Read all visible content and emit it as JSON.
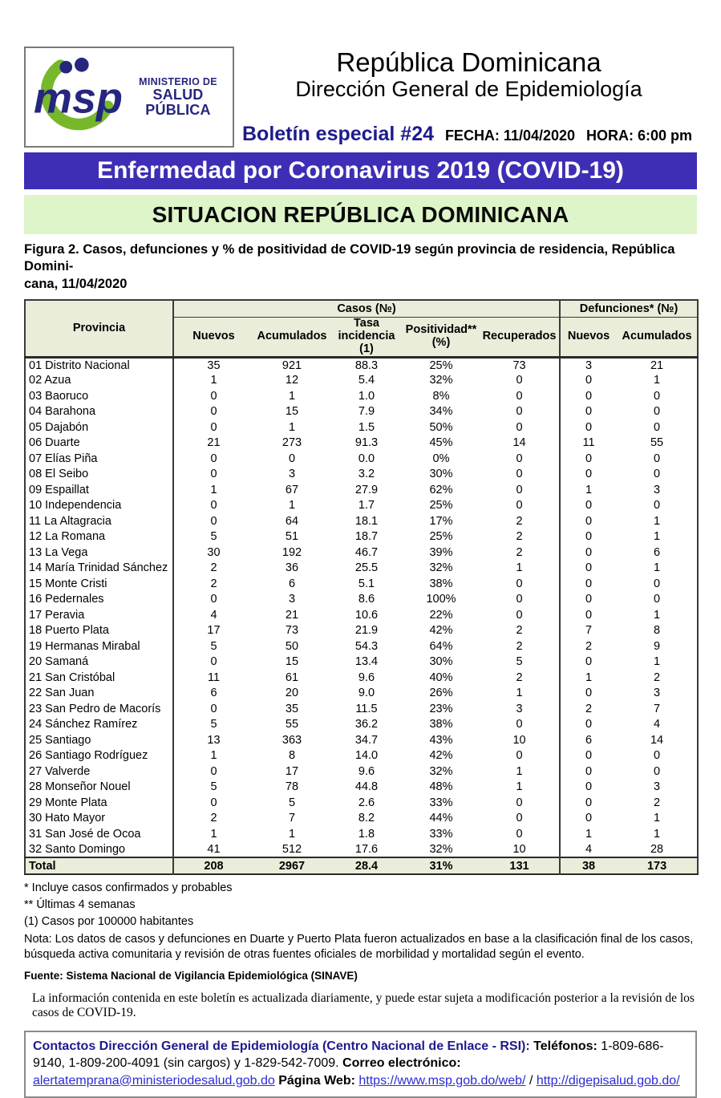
{
  "header": {
    "logo": {
      "acronym": "msp",
      "ministry_line1": "MINISTERIO DE",
      "ministry_line2": "SALUD PÚBLICA"
    },
    "title": "República Dominicana",
    "subtitle": "Dirección General de Epidemiología",
    "bulletin": "Boletín especial #24",
    "fecha": "FECHA: 11/04/2020",
    "hora": "HORA: 6:00 pm"
  },
  "banners": {
    "main": "Enfermedad por Coronavirus 2019 (COVID-19)",
    "section": "SITUACION REPÚBLICA DOMINICANA"
  },
  "figure_caption": {
    "line1": "Figura 2. Casos, defunciones y % de positividad de COVID-19 según provincia de residencia, República Domini-",
    "line2": "cana, 11/04/2020"
  },
  "table": {
    "group_headers": {
      "provincia": "Provincia",
      "casos": "Casos (№)",
      "defunciones": "Defunciones* (№)"
    },
    "sub_headers": [
      {
        "label": "Nuevos",
        "sub": ""
      },
      {
        "label": "Acumulados",
        "sub": ""
      },
      {
        "label": "Tasa incidencia",
        "sub": "(1)"
      },
      {
        "label": "Positividad**",
        "sub": "(%)"
      },
      {
        "label": "Recuperados",
        "sub": ""
      },
      {
        "label": "Nuevos",
        "sub": ""
      },
      {
        "label": "Acumulados",
        "sub": ""
      }
    ],
    "rows": [
      {
        "name": "01 Distrito Nacional",
        "values": [
          "35",
          "921",
          "88.3",
          "25%",
          "73",
          "3",
          "21"
        ]
      },
      {
        "name": "02 Azua",
        "values": [
          "1",
          "12",
          "5.4",
          "32%",
          "0",
          "0",
          "1"
        ]
      },
      {
        "name": "03 Baoruco",
        "values": [
          "0",
          "1",
          "1.0",
          "8%",
          "0",
          "0",
          "0"
        ]
      },
      {
        "name": "04 Barahona",
        "values": [
          "0",
          "15",
          "7.9",
          "34%",
          "0",
          "0",
          "0"
        ]
      },
      {
        "name": "05 Dajabón",
        "values": [
          "0",
          "1",
          "1.5",
          "50%",
          "0",
          "0",
          "0"
        ]
      },
      {
        "name": "06 Duarte",
        "values": [
          "21",
          "273",
          "91.3",
          "45%",
          "14",
          "11",
          "55"
        ]
      },
      {
        "name": "07 Elías Piña",
        "values": [
          "0",
          "0",
          "0.0",
          "0%",
          "0",
          "0",
          "0"
        ]
      },
      {
        "name": "08 El Seibo",
        "values": [
          "0",
          "3",
          "3.2",
          "30%",
          "0",
          "0",
          "0"
        ]
      },
      {
        "name": "09 Espaillat",
        "values": [
          "1",
          "67",
          "27.9",
          "62%",
          "0",
          "1",
          "3"
        ]
      },
      {
        "name": "10 Independencia",
        "values": [
          "0",
          "1",
          "1.7",
          "25%",
          "0",
          "0",
          "0"
        ]
      },
      {
        "name": "11 La Altagracia",
        "values": [
          "0",
          "64",
          "18.1",
          "17%",
          "2",
          "0",
          "1"
        ]
      },
      {
        "name": "12 La Romana",
        "values": [
          "5",
          "51",
          "18.7",
          "25%",
          "2",
          "0",
          "1"
        ]
      },
      {
        "name": "13 La Vega",
        "values": [
          "30",
          "192",
          "46.7",
          "39%",
          "2",
          "0",
          "6"
        ]
      },
      {
        "name": "14 María Trinidad Sánchez",
        "values": [
          "2",
          "36",
          "25.5",
          "32%",
          "1",
          "0",
          "1"
        ]
      },
      {
        "name": "15 Monte Cristi",
        "values": [
          "2",
          "6",
          "5.1",
          "38%",
          "0",
          "0",
          "0"
        ]
      },
      {
        "name": "16 Pedernales",
        "values": [
          "0",
          "3",
          "8.6",
          "100%",
          "0",
          "0",
          "0"
        ]
      },
      {
        "name": "17 Peravia",
        "values": [
          "4",
          "21",
          "10.6",
          "22%",
          "0",
          "0",
          "1"
        ]
      },
      {
        "name": "18 Puerto Plata",
        "values": [
          "17",
          "73",
          "21.9",
          "42%",
          "2",
          "7",
          "8"
        ]
      },
      {
        "name": "19 Hermanas Mirabal",
        "values": [
          "5",
          "50",
          "54.3",
          "64%",
          "2",
          "2",
          "9"
        ]
      },
      {
        "name": "20 Samaná",
        "values": [
          "0",
          "15",
          "13.4",
          "30%",
          "5",
          "0",
          "1"
        ]
      },
      {
        "name": "21 San Cristóbal",
        "values": [
          "11",
          "61",
          "9.6",
          "40%",
          "2",
          "1",
          "2"
        ]
      },
      {
        "name": "22 San Juan",
        "values": [
          "6",
          "20",
          "9.0",
          "26%",
          "1",
          "0",
          "3"
        ]
      },
      {
        "name": "23 San Pedro de Macorís",
        "values": [
          "0",
          "35",
          "11.5",
          "23%",
          "3",
          "2",
          "7"
        ]
      },
      {
        "name": "24 Sánchez Ramírez",
        "values": [
          "5",
          "55",
          "36.2",
          "38%",
          "0",
          "0",
          "4"
        ]
      },
      {
        "name": "25 Santiago",
        "values": [
          "13",
          "363",
          "34.7",
          "43%",
          "10",
          "6",
          "14"
        ]
      },
      {
        "name": "26 Santiago Rodríguez",
        "values": [
          "1",
          "8",
          "14.0",
          "42%",
          "0",
          "0",
          "0"
        ]
      },
      {
        "name": "27 Valverde",
        "values": [
          "0",
          "17",
          "9.6",
          "32%",
          "1",
          "0",
          "0"
        ]
      },
      {
        "name": "28 Monseñor Nouel",
        "values": [
          "5",
          "78",
          "44.8",
          "48%",
          "1",
          "0",
          "3"
        ]
      },
      {
        "name": "29 Monte Plata",
        "values": [
          "0",
          "5",
          "2.6",
          "33%",
          "0",
          "0",
          "2"
        ]
      },
      {
        "name": "30 Hato Mayor",
        "values": [
          "2",
          "7",
          "8.2",
          "44%",
          "0",
          "0",
          "1"
        ]
      },
      {
        "name": "31 San José de Ocoa",
        "values": [
          "1",
          "1",
          "1.8",
          "33%",
          "0",
          "1",
          "1"
        ]
      },
      {
        "name": "32 Santo Domingo",
        "values": [
          "41",
          "512",
          "17.6",
          "32%",
          "10",
          "4",
          "28"
        ]
      }
    ],
    "total": {
      "name": "Total",
      "values": [
        "208",
        "2967",
        "28.4",
        "31%",
        "131",
        "38",
        "173"
      ]
    }
  },
  "footnotes": [
    "* Incluye casos confirmados y probables",
    "** Últimas 4 semanas",
    "(1) Casos por 100000 habitantes",
    "Nota: Los datos de casos y defunciones en Duarte y Puerto Plata fueron actualizados en base a la clasificación final de los casos, búsqueda activa comunitaria y revisión de otras fuentes oficiales de morbilidad y mortalidad según el evento."
  ],
  "fuente": "Fuente: Sistema Nacional de Vigilancia Epidemiológica (SINAVE)",
  "disclaimer": "La información contenida en este boletín es actualizada diariamente, y puede estar sujeta a modificación posterior a la revisión de los casos de COVID-19.",
  "contact": {
    "heading": "Contactos Dirección General de Epidemiología (Centro Nacional de Enlace - RSI):",
    "phones_label": "Teléfonos:",
    "phones": " 1-809-686-9140, 1-809-200-4091 (sin cargos) y 1-829-542-7009.",
    "email_label": "Correo electrónico:",
    "email": "alertatemprana@ministeriodesalud.gob.do",
    "web_label": "Página Web:",
    "web1": "https://www.msp.gob.do/web/",
    "web_separator": " / ",
    "web2": "http://digepisalud.gob.do/"
  },
  "colors": {
    "banner_blue": "#3e2eb5",
    "banner_green": "#ddf5c9",
    "table_header_bg": "#e9edda",
    "navy": "#1d1b8c",
    "link_blue": "#2b2bd6",
    "logo_green": "#76b82a",
    "logo_navy": "#26267f"
  }
}
